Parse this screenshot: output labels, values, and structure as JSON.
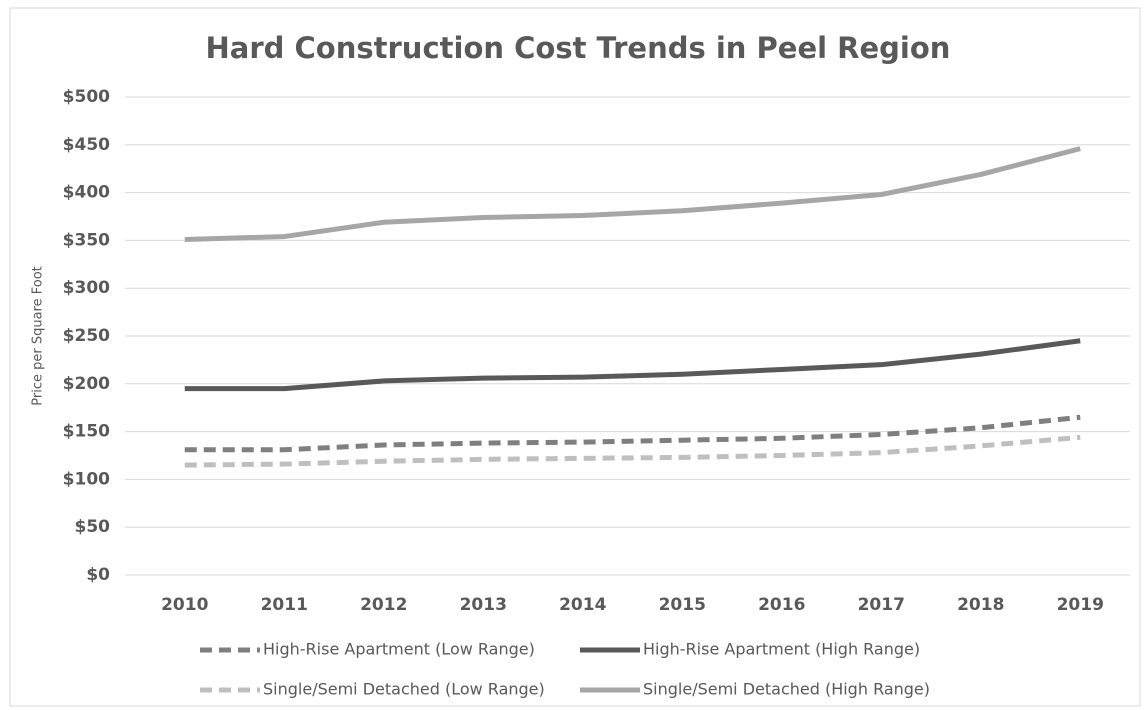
{
  "chart_data": {
    "type": "line",
    "title": "Hard Construction Cost Trends in Peel Region",
    "y_label": "Price per Square Foot",
    "categories": [
      "2010",
      "2011",
      "2012",
      "2013",
      "2014",
      "2015",
      "2016",
      "2017",
      "2018",
      "2019"
    ],
    "series": [
      {
        "name": "High-Rise Apartment (Low Range)",
        "color": "#7f7f7f",
        "dashed": true,
        "values": [
          131,
          131,
          136,
          138,
          139,
          141,
          143,
          147,
          154,
          165
        ]
      },
      {
        "name": "High-Rise Apartment (High Range)",
        "color": "#595959",
        "dashed": false,
        "values": [
          195,
          195,
          203,
          206,
          207,
          210,
          215,
          220,
          231,
          245
        ]
      },
      {
        "name": "Single/Semi Detached (Low Range)",
        "color": "#bfbfbf",
        "dashed": true,
        "values": [
          115,
          116,
          119,
          121,
          122,
          123,
          125,
          128,
          135,
          144
        ]
      },
      {
        "name": "Single/Semi Detached (High Range)",
        "color": "#a6a6a6",
        "dashed": false,
        "values": [
          351,
          354,
          369,
          374,
          376,
          381,
          389,
          398,
          419,
          446
        ]
      }
    ],
    "ylim": [
      0,
      500
    ],
    "yticks": [
      {
        "value": 0,
        "label": "$0"
      },
      {
        "value": 50,
        "label": "$50"
      },
      {
        "value": 100,
        "label": "$100"
      },
      {
        "value": 150,
        "label": "$150"
      },
      {
        "value": 200,
        "label": "$200"
      },
      {
        "value": 250,
        "label": "$250"
      },
      {
        "value": 300,
        "label": "$300"
      },
      {
        "value": 350,
        "label": "$350"
      },
      {
        "value": 400,
        "label": "$400"
      },
      {
        "value": 450,
        "label": "$450"
      },
      {
        "value": 500,
        "label": "$500"
      }
    ],
    "grid": true,
    "legend": "bottom"
  }
}
